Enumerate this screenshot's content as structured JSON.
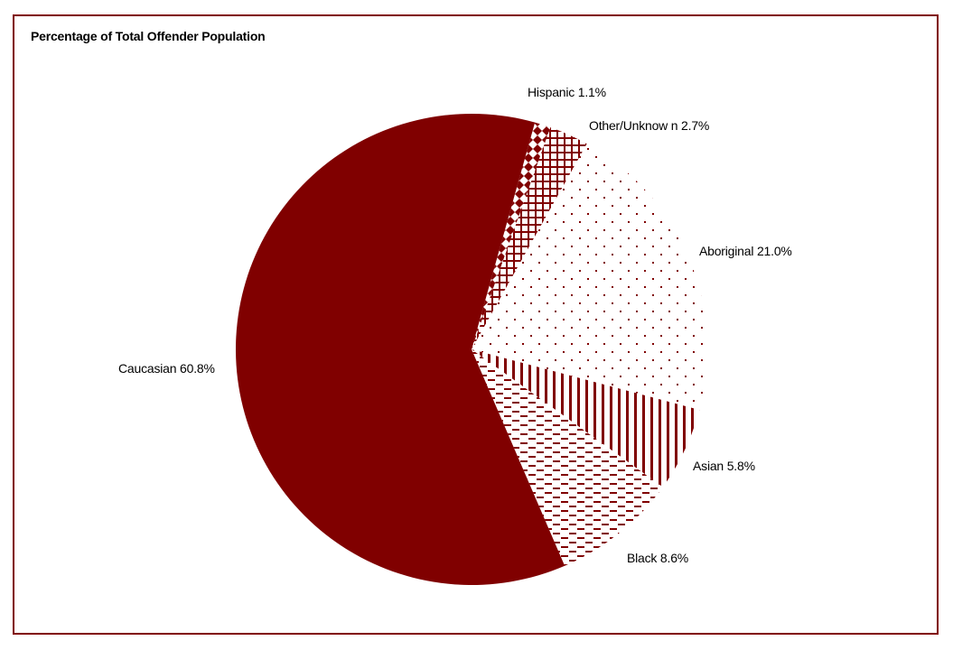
{
  "chart_data": {
    "type": "pie",
    "title": "Percentage of Total Offender Population",
    "color": "#800000",
    "direction": "clockwise",
    "slices": [
      {
        "label": "Hispanic",
        "value": 1.1,
        "display": "Hispanic 1.1%",
        "pattern": "diamonds"
      },
      {
        "label": "Other/Unknown",
        "value": 2.7,
        "display": "Other/Unknow n 2.7%",
        "pattern": "grid"
      },
      {
        "label": "Aboriginal",
        "value": 21.0,
        "display": "Aboriginal 21.0%",
        "pattern": "dots"
      },
      {
        "label": "Asian",
        "value": 5.8,
        "display": "Asian 5.8%",
        "pattern": "vertical-lines"
      },
      {
        "label": "Black",
        "value": 8.6,
        "display": "Black 8.6%",
        "pattern": "dashes"
      },
      {
        "label": "Caucasian",
        "value": 60.8,
        "display": "Caucasian 60.8%",
        "pattern": "solid"
      }
    ]
  }
}
